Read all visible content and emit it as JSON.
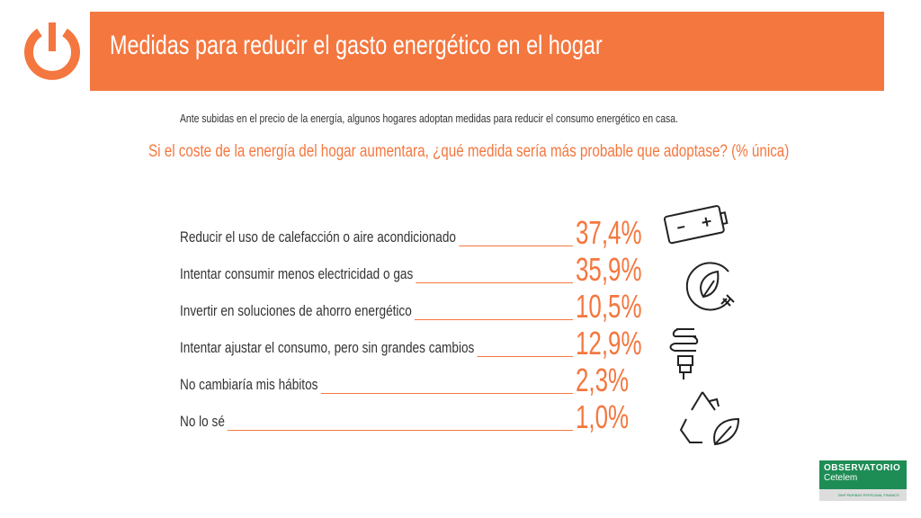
{
  "header": {
    "title": "Medidas para reducir el gasto energético en el hogar",
    "icon": "power-icon",
    "color": "#F4773F"
  },
  "intro": "Ante subidas en el precio de la energía, algunos hogares adoptan medidas para reducir el consumo energético en casa.",
  "question": "Si el coste de la energía del hogar aumentara, ¿qué medida sería más probable que adoptase? (% única)",
  "items": [
    {
      "label": "Reducir el uso de calefacción o aire acondicionado",
      "value": "37,4%"
    },
    {
      "label": "Intentar consumir menos electricidad o gas",
      "value": "35,9%"
    },
    {
      "label": "Invertir en soluciones de ahorro energético",
      "value": "10,5%"
    },
    {
      "label": "Intentar ajustar el consumo, pero sin grandes cambios",
      "value": "12,9%"
    },
    {
      "label": "No cambiaría mis hábitos",
      "value": "2,3%"
    },
    {
      "label": "No lo sé",
      "value": "1,0%"
    }
  ],
  "logo": {
    "line1": "OBSERVATORIO",
    "line2": "Cetelem",
    "line3": "BNP PARIBAS PERSONAL FINANCE"
  }
}
